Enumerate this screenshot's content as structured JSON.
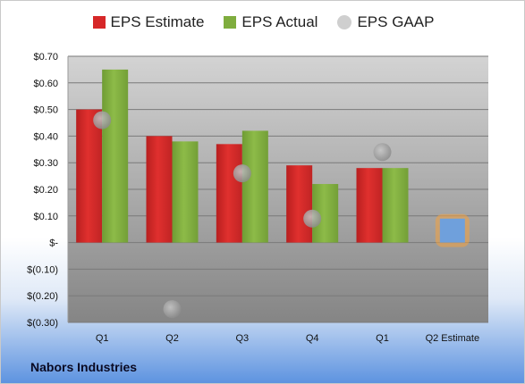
{
  "chart_data": {
    "type": "bar",
    "categories": [
      "Q1",
      "Q2",
      "Q3",
      "Q4",
      "Q1",
      "Q2 Estimate"
    ],
    "series": [
      {
        "name": "EPS Estimate",
        "values": [
          0.5,
          0.4,
          0.37,
          0.29,
          0.28,
          null
        ]
      },
      {
        "name": "EPS Actual",
        "values": [
          0.65,
          0.38,
          0.42,
          0.22,
          0.28,
          null
        ]
      },
      {
        "name": "EPS GAAP",
        "values": [
          0.46,
          -0.25,
          0.26,
          0.09,
          0.34,
          null
        ]
      }
    ],
    "estimate": {
      "category": "Q2 Estimate",
      "value": 0.09
    },
    "ylim": [
      -0.3,
      0.7
    ],
    "yticks": [
      0.7,
      0.6,
      0.5,
      0.4,
      0.3,
      0.2,
      0.1,
      0,
      -0.1,
      -0.2,
      -0.3
    ],
    "ytick_labels": [
      "$0.70",
      "$0.60",
      "$0.50",
      "$0.40",
      "$0.30",
      "$0.20",
      "$0.10",
      "$-",
      "$(0.10)",
      "$(0.20)",
      "$(0.30)"
    ],
    "colors": {
      "estimate": "#d62728",
      "actual": "#7fad3e",
      "gaap": "#a9a9a9",
      "next_estimate": "#6fa0dc",
      "next_glow": "#f4a340",
      "plot_bg_top": "#d0d0d0",
      "plot_bg_bottom": "#888888",
      "grid": "#7a7a7a"
    },
    "grid": true,
    "legend": "top-center"
  },
  "footer": {
    "company": "Nabors Industries"
  }
}
